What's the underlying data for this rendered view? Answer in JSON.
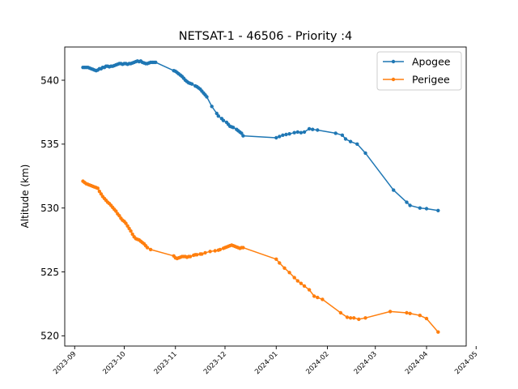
{
  "chart_data": {
    "type": "line",
    "title": "NETSAT-1 - 46506 - Priority :4",
    "xlabel": "",
    "ylabel": "Altitude (km)",
    "x_type": "date",
    "xlim": [
      "2023-08-26",
      "2024-04-25"
    ],
    "ylim": [
      519.2,
      542.6
    ],
    "xticks": [
      "2023-09",
      "2023-10",
      "2023-11",
      "2023-12",
      "2024-01",
      "2024-02",
      "2024-03",
      "2024-04",
      "2024-05"
    ],
    "yticks": [
      520,
      525,
      530,
      535,
      540
    ],
    "grid": false,
    "legend_position": "top-right",
    "series": [
      {
        "name": "Apogee",
        "color": "#1f77b4",
        "points": [
          [
            "2023-09-06",
            541.0
          ],
          [
            "2023-09-07",
            541.0
          ],
          [
            "2023-09-08",
            541.0
          ],
          [
            "2023-09-09",
            541.0
          ],
          [
            "2023-09-10",
            540.95
          ],
          [
            "2023-09-11",
            540.9
          ],
          [
            "2023-09-12",
            540.85
          ],
          [
            "2023-09-13",
            540.8
          ],
          [
            "2023-09-14",
            540.75
          ],
          [
            "2023-09-15",
            540.8
          ],
          [
            "2023-09-16",
            540.9
          ],
          [
            "2023-09-17",
            540.9
          ],
          [
            "2023-09-18",
            541.0
          ],
          [
            "2023-09-19",
            541.0
          ],
          [
            "2023-09-20",
            541.1
          ],
          [
            "2023-09-21",
            541.1
          ],
          [
            "2023-09-22",
            541.05
          ],
          [
            "2023-09-23",
            541.1
          ],
          [
            "2023-09-24",
            541.1
          ],
          [
            "2023-09-25",
            541.15
          ],
          [
            "2023-09-26",
            541.2
          ],
          [
            "2023-09-27",
            541.25
          ],
          [
            "2023-09-28",
            541.3
          ],
          [
            "2023-09-29",
            541.3
          ],
          [
            "2023-09-30",
            541.25
          ],
          [
            "2023-10-01",
            541.3
          ],
          [
            "2023-10-02",
            541.3
          ],
          [
            "2023-10-03",
            541.25
          ],
          [
            "2023-10-04",
            541.3
          ],
          [
            "2023-10-05",
            541.3
          ],
          [
            "2023-10-06",
            541.35
          ],
          [
            "2023-10-07",
            541.4
          ],
          [
            "2023-10-08",
            541.45
          ],
          [
            "2023-10-09",
            541.5
          ],
          [
            "2023-10-10",
            541.45
          ],
          [
            "2023-10-11",
            541.5
          ],
          [
            "2023-10-12",
            541.4
          ],
          [
            "2023-10-13",
            541.35
          ],
          [
            "2023-10-14",
            541.3
          ],
          [
            "2023-10-15",
            541.3
          ],
          [
            "2023-10-16",
            541.35
          ],
          [
            "2023-10-17",
            541.4
          ],
          [
            "2023-10-18",
            541.4
          ],
          [
            "2023-10-19",
            541.4
          ],
          [
            "2023-10-20",
            541.4
          ],
          [
            "2023-10-31",
            540.75
          ],
          [
            "2023-11-01",
            540.7
          ],
          [
            "2023-11-02",
            540.6
          ],
          [
            "2023-11-03",
            540.5
          ],
          [
            "2023-11-04",
            540.4
          ],
          [
            "2023-11-05",
            540.3
          ],
          [
            "2023-11-06",
            540.15
          ],
          [
            "2023-11-07",
            540.0
          ],
          [
            "2023-11-08",
            539.9
          ],
          [
            "2023-11-09",
            539.8
          ],
          [
            "2023-11-10",
            539.75
          ],
          [
            "2023-11-11",
            539.7
          ],
          [
            "2023-11-13",
            539.55
          ],
          [
            "2023-11-14",
            539.5
          ],
          [
            "2023-11-15",
            539.4
          ],
          [
            "2023-11-16",
            539.3
          ],
          [
            "2023-11-17",
            539.15
          ],
          [
            "2023-11-18",
            539.0
          ],
          [
            "2023-11-19",
            538.85
          ],
          [
            "2023-11-20",
            538.7
          ],
          [
            "2023-11-23",
            537.95
          ],
          [
            "2023-11-26",
            537.4
          ],
          [
            "2023-11-27",
            537.2
          ],
          [
            "2023-11-29",
            537.0
          ],
          [
            "2023-11-30",
            536.85
          ],
          [
            "2023-12-02",
            536.7
          ],
          [
            "2023-12-03",
            536.55
          ],
          [
            "2023-12-04",
            536.4
          ],
          [
            "2023-12-05",
            536.35
          ],
          [
            "2023-12-06",
            536.3
          ],
          [
            "2023-12-08",
            536.15
          ],
          [
            "2023-12-09",
            536.05
          ],
          [
            "2023-12-10",
            535.95
          ],
          [
            "2023-12-11",
            535.85
          ],
          [
            "2023-12-12",
            535.65
          ],
          [
            "2024-01-01",
            535.5
          ],
          [
            "2024-01-03",
            535.6
          ],
          [
            "2024-01-05",
            535.7
          ],
          [
            "2024-01-07",
            535.75
          ],
          [
            "2024-01-09",
            535.8
          ],
          [
            "2024-01-12",
            535.9
          ],
          [
            "2024-01-14",
            535.95
          ],
          [
            "2024-01-16",
            535.9
          ],
          [
            "2024-01-18",
            535.95
          ],
          [
            "2024-01-21",
            536.2
          ],
          [
            "2024-01-23",
            536.15
          ],
          [
            "2024-01-26",
            536.1
          ],
          [
            "2024-02-06",
            535.85
          ],
          [
            "2024-02-10",
            535.7
          ],
          [
            "2024-02-12",
            535.4
          ],
          [
            "2024-02-15",
            535.2
          ],
          [
            "2024-02-19",
            535.0
          ],
          [
            "2024-02-24",
            534.3
          ],
          [
            "2024-03-12",
            531.4
          ],
          [
            "2024-03-20",
            530.45
          ],
          [
            "2024-03-22",
            530.2
          ],
          [
            "2024-03-28",
            530.0
          ],
          [
            "2024-04-01",
            529.95
          ],
          [
            "2024-04-08",
            529.8
          ]
        ]
      },
      {
        "name": "Perigee",
        "color": "#ff7f0e",
        "points": [
          [
            "2023-09-06",
            532.1
          ],
          [
            "2023-09-07",
            532.0
          ],
          [
            "2023-09-08",
            531.9
          ],
          [
            "2023-09-09",
            531.85
          ],
          [
            "2023-09-10",
            531.8
          ],
          [
            "2023-09-11",
            531.75
          ],
          [
            "2023-09-12",
            531.7
          ],
          [
            "2023-09-13",
            531.65
          ],
          [
            "2023-09-14",
            531.6
          ],
          [
            "2023-09-15",
            531.55
          ],
          [
            "2023-09-16",
            531.3
          ],
          [
            "2023-09-17",
            531.1
          ],
          [
            "2023-09-18",
            530.9
          ],
          [
            "2023-09-19",
            530.75
          ],
          [
            "2023-09-20",
            530.6
          ],
          [
            "2023-09-21",
            530.45
          ],
          [
            "2023-09-22",
            530.35
          ],
          [
            "2023-09-23",
            530.2
          ],
          [
            "2023-09-24",
            530.05
          ],
          [
            "2023-09-25",
            529.9
          ],
          [
            "2023-09-26",
            529.75
          ],
          [
            "2023-09-27",
            529.55
          ],
          [
            "2023-09-28",
            529.4
          ],
          [
            "2023-09-29",
            529.2
          ],
          [
            "2023-09-30",
            529.05
          ],
          [
            "2023-10-01",
            528.95
          ],
          [
            "2023-10-02",
            528.8
          ],
          [
            "2023-10-03",
            528.6
          ],
          [
            "2023-10-04",
            528.4
          ],
          [
            "2023-10-05",
            528.2
          ],
          [
            "2023-10-06",
            527.95
          ],
          [
            "2023-10-07",
            527.75
          ],
          [
            "2023-10-08",
            527.6
          ],
          [
            "2023-10-09",
            527.55
          ],
          [
            "2023-10-10",
            527.5
          ],
          [
            "2023-10-11",
            527.4
          ],
          [
            "2023-10-12",
            527.3
          ],
          [
            "2023-10-13",
            527.2
          ],
          [
            "2023-10-14",
            527.05
          ],
          [
            "2023-10-15",
            526.9
          ],
          [
            "2023-10-17",
            526.75
          ],
          [
            "2023-10-31",
            526.25
          ],
          [
            "2023-11-01",
            526.1
          ],
          [
            "2023-11-02",
            526.05
          ],
          [
            "2023-11-03",
            526.1
          ],
          [
            "2023-11-04",
            526.15
          ],
          [
            "2023-11-05",
            526.2
          ],
          [
            "2023-11-06",
            526.2
          ],
          [
            "2023-11-07",
            526.2
          ],
          [
            "2023-11-08",
            526.15
          ],
          [
            "2023-11-09",
            526.2
          ],
          [
            "2023-11-10",
            526.2
          ],
          [
            "2023-11-12",
            526.3
          ],
          [
            "2023-11-13",
            526.35
          ],
          [
            "2023-11-14",
            526.35
          ],
          [
            "2023-11-16",
            526.4
          ],
          [
            "2023-11-17",
            526.4
          ],
          [
            "2023-11-19",
            526.5
          ],
          [
            "2023-11-22",
            526.6
          ],
          [
            "2023-11-25",
            526.65
          ],
          [
            "2023-11-27",
            526.7
          ],
          [
            "2023-11-28",
            526.75
          ],
          [
            "2023-11-30",
            526.85
          ],
          [
            "2023-12-01",
            526.9
          ],
          [
            "2023-12-02",
            526.95
          ],
          [
            "2023-12-03",
            527.0
          ],
          [
            "2023-12-04",
            527.05
          ],
          [
            "2023-12-05",
            527.1
          ],
          [
            "2023-12-06",
            527.05
          ],
          [
            "2023-12-07",
            527.0
          ],
          [
            "2023-12-08",
            526.95
          ],
          [
            "2023-12-09",
            526.9
          ],
          [
            "2023-12-10",
            526.85
          ],
          [
            "2023-12-11",
            526.9
          ],
          [
            "2023-12-12",
            526.9
          ],
          [
            "2024-01-01",
            526.0
          ],
          [
            "2024-01-03",
            525.7
          ],
          [
            "2024-01-06",
            525.3
          ],
          [
            "2024-01-09",
            524.95
          ],
          [
            "2024-01-12",
            524.55
          ],
          [
            "2024-01-14",
            524.3
          ],
          [
            "2024-01-16",
            524.1
          ],
          [
            "2024-01-18",
            523.9
          ],
          [
            "2024-01-21",
            523.6
          ],
          [
            "2024-01-24",
            523.1
          ],
          [
            "2024-01-26",
            523.0
          ],
          [
            "2024-01-29",
            522.85
          ],
          [
            "2024-02-09",
            521.8
          ],
          [
            "2024-02-13",
            521.45
          ],
          [
            "2024-02-15",
            521.4
          ],
          [
            "2024-02-17",
            521.4
          ],
          [
            "2024-02-20",
            521.3
          ],
          [
            "2024-02-24",
            521.4
          ],
          [
            "2024-03-10",
            521.9
          ],
          [
            "2024-03-20",
            521.8
          ],
          [
            "2024-03-22",
            521.75
          ],
          [
            "2024-03-28",
            521.6
          ],
          [
            "2024-04-01",
            521.35
          ],
          [
            "2024-04-08",
            520.3
          ]
        ]
      }
    ]
  }
}
